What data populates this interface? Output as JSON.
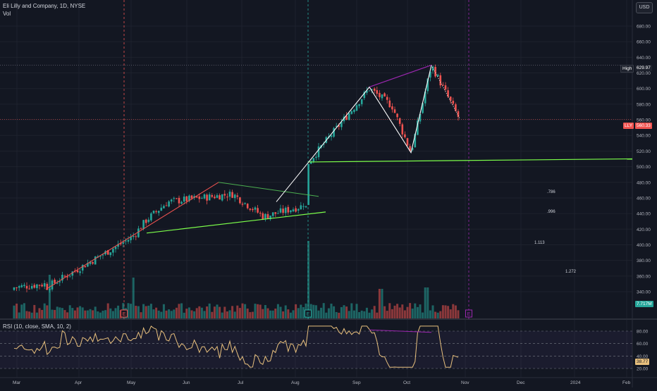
{
  "header": {
    "title": "Eli Lilly and Company, 1D, NYSE",
    "subtitle": "Vol",
    "currency": "USD"
  },
  "rsi_panel": {
    "title": "RSI (10, close, SMA, 10, 2)",
    "current_value": "38.77",
    "levels": [
      "80.00",
      "60.00",
      "40.00",
      "20.00"
    ]
  },
  "price_axis": {
    "ticks": [
      "680.00",
      "660.00",
      "640.00",
      "620.00",
      "600.00",
      "580.00",
      "560.00",
      "540.00",
      "520.00",
      "500.00",
      "480.00",
      "460.00",
      "440.00",
      "420.00",
      "400.00",
      "380.00",
      "360.00",
      "340.00"
    ]
  },
  "time_axis": {
    "ticks": [
      "Mar",
      "Apr",
      "May",
      "Jun",
      "Jul",
      "Aug",
      "Sep",
      "Oct",
      "Nov",
      "Dec",
      "2024",
      "Feb"
    ]
  },
  "markers": {
    "high_label": "High",
    "high_value": "629.97",
    "last_ticker": "LLY",
    "last_value": "560.33",
    "volume_value": "7.717M",
    "earnings_glyph": "E"
  },
  "fib_labels": [
    ".786",
    ".996",
    "1.113",
    "1.272"
  ],
  "colors": {
    "background": "#131722",
    "up": "#26a69a",
    "down": "#ef5350",
    "pattern_line": "#ffffff",
    "trend_line_green": "#7cff4a",
    "divergence": "#9c27b0",
    "rsi_line": "#e8c07d",
    "rsi_band": "#7e57c2"
  },
  "chart_data": {
    "type": "candlestick",
    "key_points": {
      "x": [
        "Mar 01",
        "May 01",
        "May 15",
        "Jun 02",
        "Jul 01",
        "Jul 20",
        "Aug 08",
        "Aug 08",
        "Aug 30",
        "Sep 20",
        "Oct 03",
        "Oct 13",
        "Oct 26"
      ],
      "y": [
        345,
        410,
        432,
        455,
        465,
        436,
        450,
        505,
        600,
        578,
        518,
        629.97,
        560.33
      ]
    },
    "high": 629.97,
    "last": 560.33,
    "support_line": 505,
    "rsi_last": 38.77
  }
}
